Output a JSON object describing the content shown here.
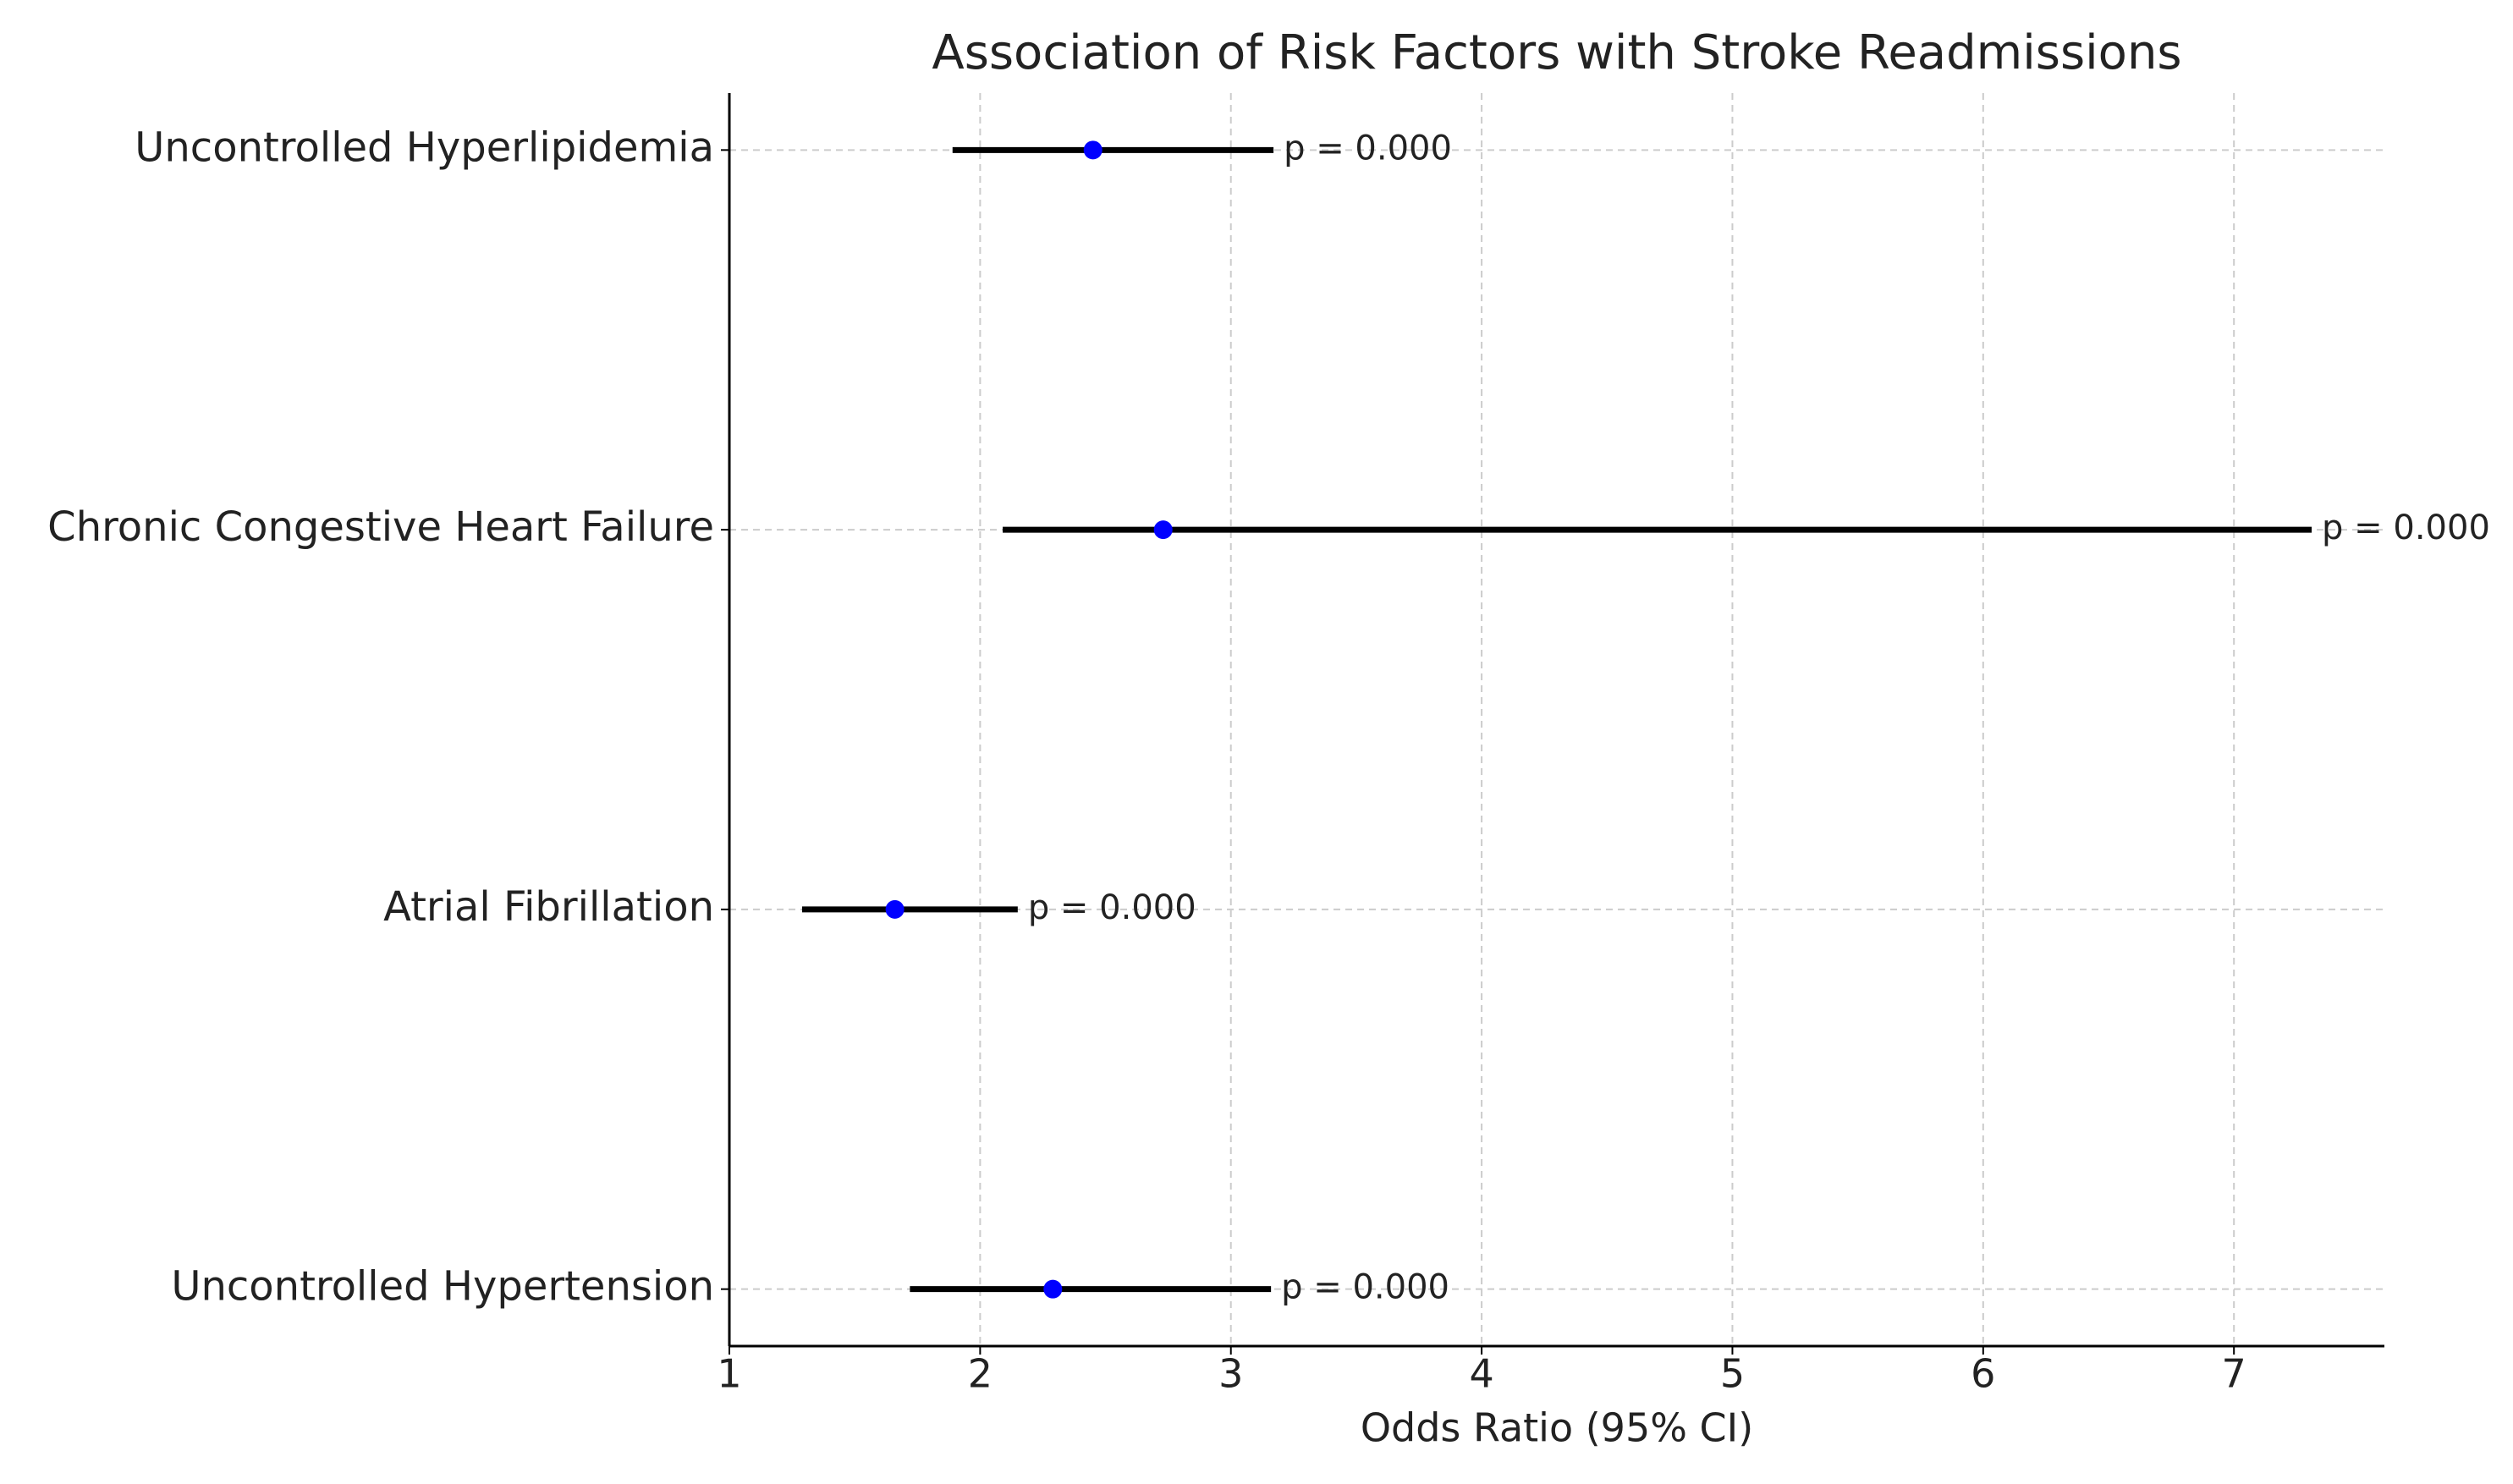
{
  "chart_data": {
    "type": "forest",
    "title": "Association of Risk Factors with Stroke Readmissions",
    "x_label": "Odds Ratio (95% CI)",
    "categories": [
      "Uncontrolled Hyperlipidemia",
      "Chronic Congestive Heart Failure",
      "Atrial Fibrillation",
      "Uncontrolled Hypertension"
    ],
    "values": [
      2.45,
      2.73,
      1.66,
      2.29
    ],
    "lower": [
      1.89,
      2.09,
      1.29,
      1.72
    ],
    "upper": [
      3.17,
      7.31,
      2.15,
      3.16
    ],
    "annotations": [
      "p = 0.000",
      "p = 0.000",
      "p = 0.000",
      "p = 0.000"
    ],
    "point_color": "#0000ff",
    "ci_color": "#000000",
    "xlim": [
      1,
      7.6
    ],
    "xticks": [
      1,
      2,
      3,
      4,
      5,
      6,
      7
    ],
    "grid": true
  }
}
